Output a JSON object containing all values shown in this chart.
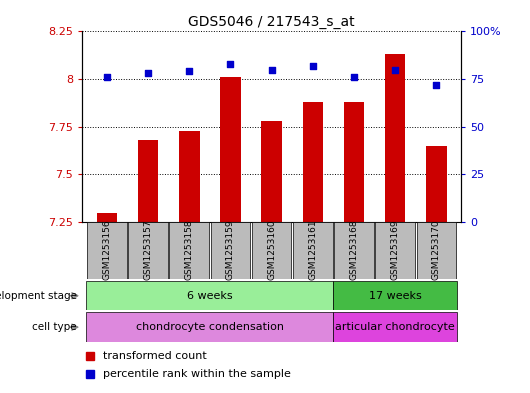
{
  "title": "GDS5046 / 217543_s_at",
  "samples": [
    "GSM1253156",
    "GSM1253157",
    "GSM1253158",
    "GSM1253159",
    "GSM1253160",
    "GSM1253161",
    "GSM1253168",
    "GSM1253169",
    "GSM1253170"
  ],
  "transformed_counts": [
    7.3,
    7.68,
    7.73,
    8.01,
    7.78,
    7.88,
    7.88,
    8.13,
    7.65
  ],
  "percentile_ranks": [
    76,
    78,
    79,
    83,
    80,
    82,
    76,
    80,
    72
  ],
  "ylim_left": [
    7.25,
    8.25
  ],
  "ylim_right": [
    0,
    100
  ],
  "yticks_left": [
    7.25,
    7.5,
    7.75,
    8.0,
    8.25
  ],
  "yticks_right": [
    0,
    25,
    50,
    75,
    100
  ],
  "ytick_labels_left": [
    "7.25",
    "7.5",
    "7.75",
    "8",
    "8.25"
  ],
  "ytick_labels_right": [
    "0",
    "25",
    "50",
    "75",
    "100%"
  ],
  "bar_color": "#cc0000",
  "dot_color": "#0000cc",
  "bar_bottom": 7.25,
  "groups": [
    {
      "label": "6 weeks",
      "start": 0,
      "end": 6,
      "color": "#99ee99"
    },
    {
      "label": "17 weeks",
      "start": 6,
      "end": 9,
      "color": "#44bb44"
    }
  ],
  "cell_types": [
    {
      "label": "chondrocyte condensation",
      "start": 0,
      "end": 6,
      "color": "#dd88dd"
    },
    {
      "label": "articular chondrocyte",
      "start": 6,
      "end": 9,
      "color": "#dd44dd"
    }
  ],
  "development_stage_label": "development stage",
  "cell_type_label": "cell type",
  "legend_bar_label": "transformed count",
  "legend_dot_label": "percentile rank within the sample",
  "bg_color": "#ffffff",
  "tick_label_color_left": "#cc0000",
  "tick_label_color_right": "#0000cc",
  "grid_color": "#000000",
  "sample_bg_color": "#bbbbbb"
}
